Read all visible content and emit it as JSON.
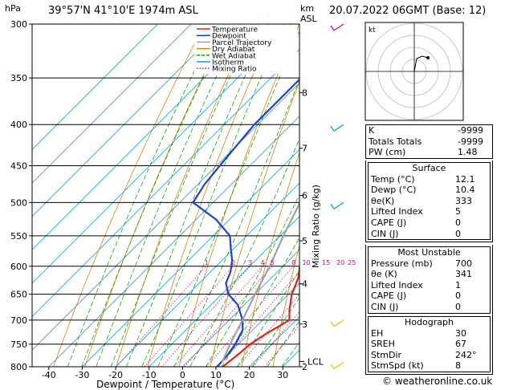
{
  "header": {
    "location": "39°57'N  41°10'E  1974m  ASL",
    "date": "20.07.2022  06GMT  (Base: 12)",
    "hpa_label": "hPa",
    "km_label": "km",
    "asl_label": "ASL"
  },
  "chart_data": {
    "type": "line",
    "title": "",
    "xlabel": "Dewpoint / Temperature (°C)",
    "ylabel": "hPa",
    "right_axis_label": "Mixing Ratio (g/kg)",
    "x_ticks": [
      "-40",
      "-30",
      "-20",
      "-10",
      "0",
      "10",
      "20",
      "30"
    ],
    "x_range": [
      -45,
      35
    ],
    "y_pressure_ticks": [
      300,
      350,
      400,
      450,
      500,
      550,
      600,
      650,
      700,
      750,
      800
    ],
    "y_range": [
      800,
      300
    ],
    "km_ticks": [
      {
        "label": "8",
        "p": 365
      },
      {
        "label": "7",
        "p": 428
      },
      {
        "label": "6",
        "p": 490
      },
      {
        "label": "5",
        "p": 558
      },
      {
        "label": "4",
        "p": 631
      },
      {
        "label": "3",
        "p": 708
      },
      {
        "label": "2",
        "p": 800
      }
    ],
    "lcl": {
      "label": "LCL",
      "p": 788
    },
    "mixing_ratio_labels": [
      "1",
      "2",
      "3",
      "4",
      "5",
      "8",
      "10",
      "15",
      "20",
      "25"
    ],
    "legend": {
      "placement": "top-left",
      "entries": [
        {
          "name": "Temperature",
          "color": "#e02020"
        },
        {
          "name": "Dewpoint",
          "color": "#2040d0"
        },
        {
          "name": "Parcel Trajectory",
          "color": "#a0a0a0"
        },
        {
          "name": "Dry Adiabat",
          "color": "#e08000"
        },
        {
          "name": "Wet Adiabat",
          "color": "#00b000"
        },
        {
          "name": "Isotherm",
          "color": "#00a0e0"
        },
        {
          "name": "Mixing Ratio",
          "color": "#d0008f"
        }
      ]
    },
    "series": [
      {
        "name": "Temperature",
        "color": "#e02020",
        "points": [
          [
            12.1,
            800
          ],
          [
            13,
            770
          ],
          [
            13.5,
            750
          ],
          [
            15,
            730
          ],
          [
            18,
            700
          ],
          [
            15,
            680
          ],
          [
            11,
            650
          ],
          [
            8,
            620
          ],
          [
            5,
            600
          ],
          [
            2,
            575
          ],
          [
            -1,
            550
          ],
          [
            -4,
            525
          ],
          [
            -8,
            500
          ],
          [
            -12,
            475
          ],
          [
            -16,
            450
          ],
          [
            -21,
            425
          ],
          [
            -24,
            400
          ],
          [
            -29,
            375
          ],
          [
            -32,
            350
          ]
        ]
      },
      {
        "name": "Dewpoint",
        "color": "#2040d0",
        "points": [
          [
            10.4,
            800
          ],
          [
            10,
            775
          ],
          [
            9,
            750
          ],
          [
            7,
            720
          ],
          [
            4,
            700
          ],
          [
            -2,
            670
          ],
          [
            -8,
            650
          ],
          [
            -12,
            630
          ],
          [
            -14,
            610
          ],
          [
            -17,
            590
          ],
          [
            -21,
            570
          ],
          [
            -25,
            550
          ],
          [
            -34,
            525
          ],
          [
            -46,
            500
          ],
          [
            -48,
            475
          ],
          [
            -49,
            450
          ],
          [
            -50,
            425
          ],
          [
            -51,
            400
          ],
          [
            -51,
            375
          ],
          [
            -51,
            350
          ],
          [
            -50,
            325
          ],
          [
            -47,
            300
          ]
        ]
      },
      {
        "name": "Parcel Trajectory",
        "color": "#a0a0a0",
        "points": [
          [
            10.5,
            790
          ],
          [
            7.5,
            750
          ],
          [
            4,
            700
          ],
          [
            0,
            650
          ],
          [
            -4,
            600
          ],
          [
            -9,
            550
          ],
          [
            -14,
            500
          ],
          [
            -20,
            450
          ],
          [
            -27,
            400
          ],
          [
            -35,
            350
          ],
          [
            -42,
            310
          ]
        ]
      }
    ],
    "wind_barbs_color": "#00a0c0"
  },
  "indices": [
    {
      "label": "K",
      "value": "-9999"
    },
    {
      "label": "Totals Totals",
      "value": "-9999"
    },
    {
      "label": "PW (cm)",
      "value": "1.48"
    }
  ],
  "surface": {
    "title": "Surface",
    "rows": [
      {
        "label": "Temp (°C)",
        "value": "12.1"
      },
      {
        "label": "Dewp (°C)",
        "value": "10.4"
      },
      {
        "label": "θe(K)",
        "value": "333"
      },
      {
        "label": "Lifted Index",
        "value": "5"
      },
      {
        "label": "CAPE (J)",
        "value": "0"
      },
      {
        "label": "CIN (J)",
        "value": "0"
      }
    ]
  },
  "most_unstable": {
    "title": "Most Unstable",
    "rows": [
      {
        "label": "Pressure (mb)",
        "value": "700"
      },
      {
        "label": "θe (K)",
        "value": "341"
      },
      {
        "label": "Lifted Index",
        "value": "1"
      },
      {
        "label": "CAPE (J)",
        "value": "0"
      },
      {
        "label": "CIN (J)",
        "value": "0"
      }
    ]
  },
  "hodograph": {
    "title": "Hodograph",
    "kt_label": "kt",
    "rows": [
      {
        "label": "EH",
        "value": "30"
      },
      {
        "label": "SREH",
        "value": "67"
      },
      {
        "label": "StmDir",
        "value": "242°"
      },
      {
        "label": "StmSpd (kt)",
        "value": "8"
      }
    ]
  },
  "credit": "© weatheronline.co.uk"
}
